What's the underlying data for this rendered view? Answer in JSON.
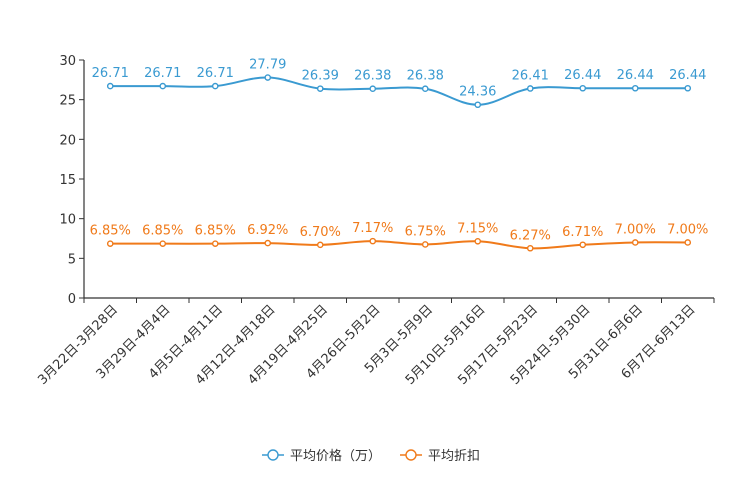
{
  "chart_data": {
    "type": "line",
    "title": "",
    "xlabel": "",
    "ylabel": "",
    "ylim": [
      0,
      30
    ],
    "yticks": [
      "0",
      "5",
      "10",
      "15",
      "20",
      "25",
      "30"
    ],
    "yticks_values": [
      0,
      5,
      10,
      15,
      20,
      25,
      30
    ],
    "categories": [
      "3月22日-3月28日",
      "3月29日-4月4日",
      "4月5日-4月11日",
      "4月12日-4月18日",
      "4月19日-4月25日",
      "4月26日-5月2日",
      "5月3日-5月9日",
      "5月10日-5月16日",
      "5月17日-5月23日",
      "5月24日-5月30日",
      "5月31日-6月6日",
      "6月7日-6月13日"
    ],
    "series": [
      {
        "name": "平均价格（万）",
        "color": "#3a9ad1",
        "values": [
          26.71,
          26.71,
          26.71,
          27.79,
          26.39,
          26.38,
          26.38,
          24.36,
          26.41,
          26.44,
          26.44,
          26.44
        ],
        "labels": [
          "26.71",
          "26.71",
          "26.71",
          "27.79",
          "26.39",
          "26.38",
          "26.38",
          "24.36",
          "26.41",
          "26.44",
          "26.44",
          "26.44"
        ]
      },
      {
        "name": "平均折扣",
        "color": "#f07a1a",
        "values": [
          6.85,
          6.85,
          6.85,
          6.92,
          6.7,
          7.17,
          6.75,
          7.15,
          6.27,
          6.71,
          7.0,
          7.0
        ],
        "labels": [
          "6.85%",
          "6.85%",
          "6.85%",
          "6.92%",
          "6.70%",
          "7.17%",
          "6.75%",
          "7.15%",
          "6.27%",
          "6.71%",
          "7.00%",
          "7.00%"
        ]
      }
    ],
    "legend": {
      "position": "bottom-center"
    },
    "grid": false
  }
}
